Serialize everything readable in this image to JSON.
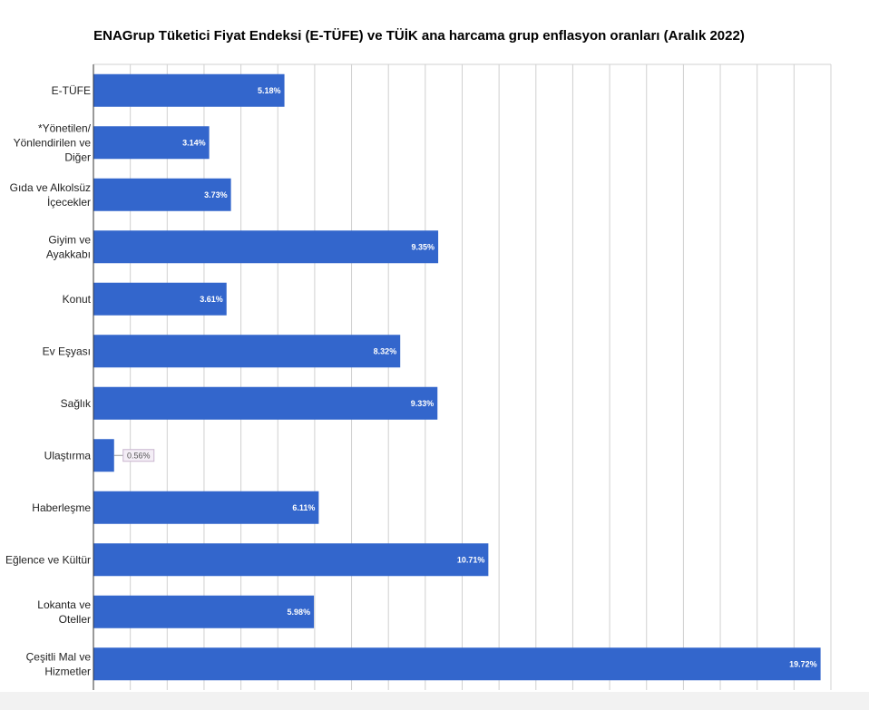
{
  "chart_data": {
    "type": "bar",
    "orientation": "horizontal",
    "title": "ENAGrup Tüketici Fiyat Endeksi (E-TÜFE) ve TÜİK ana harcama grup enflasyon oranları (Aralık 2022)",
    "xlabel": "",
    "ylabel": "",
    "xlim": [
      0,
      20
    ],
    "grid": true,
    "bar_color": "#3366cc",
    "categories": [
      "E-TÜFE",
      "*Yönetilen/ Yönlendirilen ve Diğer",
      "Gıda ve Alkolsüz İçecekler",
      "Giyim ve Ayakkabı",
      "Konut",
      "Ev Eşyası",
      "Sağlık",
      "Ulaştırma",
      "Haberleşme",
      "Eğlence ve Kültür",
      "Lokanta ve Oteller",
      "Çeşitli Mal ve Hizmetler"
    ],
    "category_lines": [
      [
        "E-TÜFE"
      ],
      [
        "*Yönetilen/",
        "Yönlendirilen ve",
        "Diğer"
      ],
      [
        "Gıda ve Alkolsüz",
        "İçecekler"
      ],
      [
        "Giyim ve",
        "Ayakkabı"
      ],
      [
        "Konut"
      ],
      [
        "Ev Eşyası"
      ],
      [
        "Sağlık"
      ],
      [
        "Ulaştırma"
      ],
      [
        "Haberleşme"
      ],
      [
        "Eğlence ve Kültür"
      ],
      [
        "Lokanta ve",
        "Oteller"
      ],
      [
        "Çeşitli Mal ve",
        "Hizmetler"
      ]
    ],
    "values": [
      5.18,
      3.14,
      3.73,
      9.35,
      3.61,
      8.32,
      9.33,
      0.56,
      6.11,
      10.71,
      5.98,
      19.72
    ],
    "value_labels": [
      "5.18%",
      "3.14%",
      "3.73%",
      "9.35%",
      "3.61%",
      "8.32%",
      "9.33%",
      "0.56%",
      "6.11%",
      "10.71%",
      "5.98%",
      "19.72%"
    ]
  }
}
